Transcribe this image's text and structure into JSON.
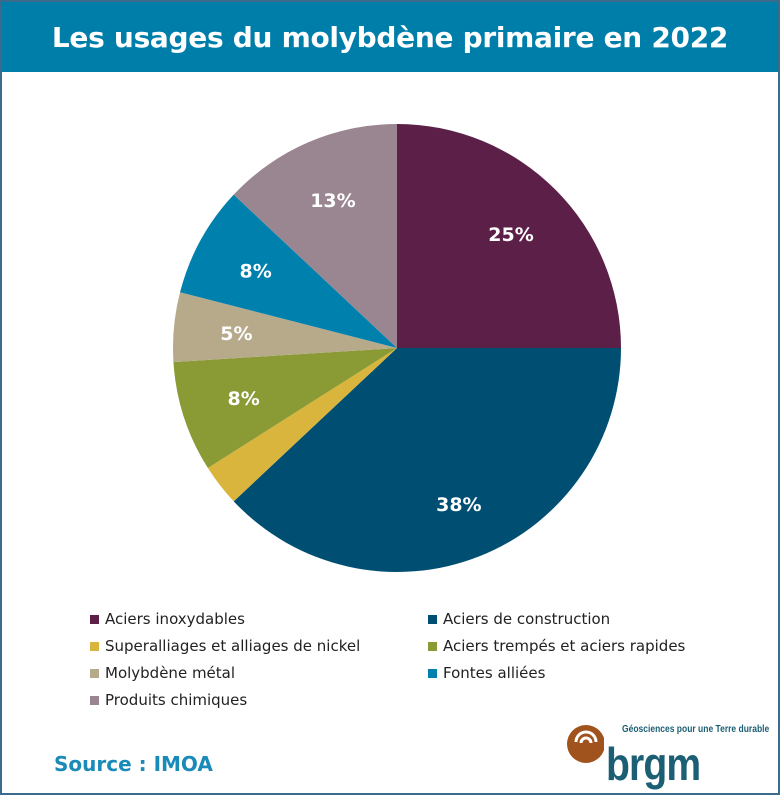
{
  "title": "Les usages du molybdène primaire en 2022",
  "chart_data": {
    "type": "pie",
    "title": "Les usages du molybdène primaire en 2022",
    "start": "top, clockwise",
    "categories": [
      "Aciers inoxydables",
      "Aciers de construction",
      "Superalliages et alliages de nickel",
      "Aciers trempés et aciers rapides",
      "Molybdène métal",
      "Fontes alliées",
      "Produits chimiques"
    ],
    "values": [
      25,
      38,
      3,
      8,
      5,
      8,
      13
    ],
    "data_labels": [
      "25%",
      "38%",
      "",
      "8%",
      "5%",
      "8%",
      "13%"
    ],
    "colors": [
      "#5c1f47",
      "#004f72",
      "#d9b53d",
      "#8a9a35",
      "#b6aa8b",
      "#0080ad",
      "#9a8690"
    ],
    "legend_placement": "bottom"
  },
  "source": "Source : IMOA",
  "logo": {
    "name": "brgm",
    "tagline": "Géosciences pour une Terre durable"
  }
}
